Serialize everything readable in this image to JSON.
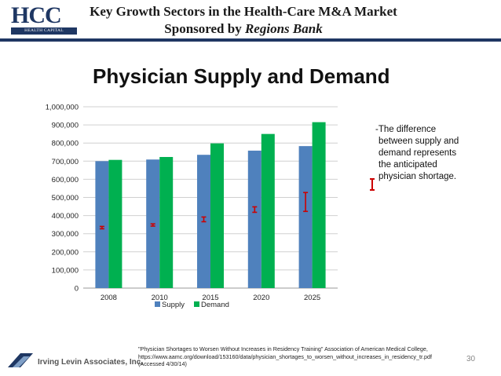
{
  "header": {
    "logo_letters": "HCC",
    "logo_subtitle": "HEALTH CAPITAL CONSULTANTS",
    "title_line1": "Key Growth Sectors in the Health-Care M&A Market",
    "sponsor_prefix": "Sponsored by ",
    "sponsor_name": "Regions Bank",
    "rule_color": "#1f3763"
  },
  "slide_title": "Physician Supply and Demand",
  "chart_data": {
    "type": "bar",
    "categories": [
      "2008",
      "2010",
      "2015",
      "2020",
      "2025"
    ],
    "series": [
      {
        "name": "Supply",
        "values": [
          700000,
          709000,
          735000,
          758000,
          783000
        ],
        "color": "#4f81bd"
      },
      {
        "name": "Demand",
        "values": [
          707000,
          723000,
          798000,
          850000,
          915000
        ],
        "color": "#00b050"
      }
    ],
    "shortage_markers": {
      "color": "#cc0000",
      "ranges": [
        [
          327000,
          340000
        ],
        [
          342000,
          354000
        ],
        [
          366000,
          392000
        ],
        [
          418000,
          448000
        ],
        [
          423000,
          527000
        ]
      ]
    },
    "yticks": [
      "0",
      "100,000",
      "200,000",
      "300,000",
      "400,000",
      "500,000",
      "600,000",
      "700,000",
      "800,000",
      "900,000",
      "1,000,000"
    ],
    "ylim": [
      0,
      1000000
    ],
    "legend": [
      "Supply",
      "Demand"
    ],
    "legend_position": "bottom",
    "grid": true,
    "title": "",
    "xlabel": "",
    "ylabel": ""
  },
  "annotation": {
    "lines": [
      "-The difference",
      "between supply and",
      "demand represents",
      "the anticipated",
      "physician shortage."
    ],
    "marker_color": "#cc0000"
  },
  "footer": {
    "company": "Irving Levin Associates, Inc.",
    "citation_lines": [
      "\"Physician Shortages to Worsen Without Increases in Residency Training\" Association of American Medical College,",
      "https://www.aamc.org/download/153160/data/physician_shortages_to_worsen_without_increases_in_residency_tr.pdf",
      "(Accessed 4/30/14)"
    ],
    "page_number": "30"
  }
}
